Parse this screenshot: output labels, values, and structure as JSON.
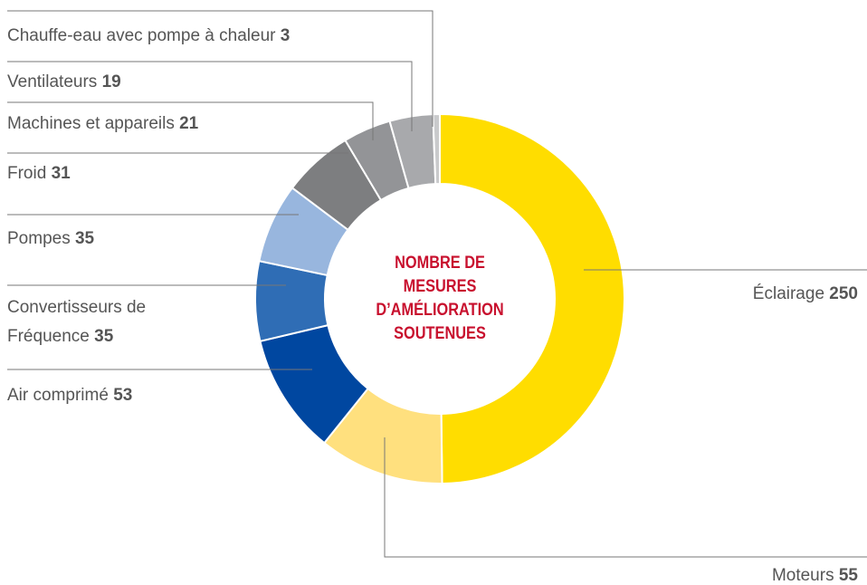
{
  "chart_data": {
    "type": "pie",
    "donut": true,
    "center_label": "NOMBRE DE MESURES D’AMÉLIORATION SOUTENUES",
    "categories": [
      "Éclairage",
      "Moteurs",
      "Air comprimé",
      "Convertisseurs de Fréquence",
      "Pompes",
      "Froid",
      "Machines et appareils",
      "Ventilateurs",
      "Chauffe-eau avec pompe à chaleur"
    ],
    "values": [
      250,
      55,
      53,
      35,
      35,
      31,
      21,
      19,
      3
    ],
    "colors": [
      "#FFDD00",
      "#FFE07E",
      "#0047A0",
      "#2F6DB5",
      "#98B6DE",
      "#7D7E80",
      "#939497",
      "#A8A9AC",
      "#C9CACC"
    ]
  }
}
